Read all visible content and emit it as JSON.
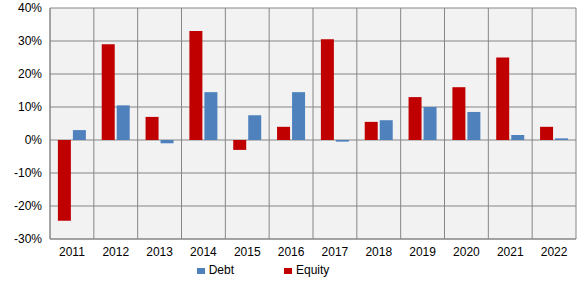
{
  "chart_data": {
    "type": "bar",
    "categories": [
      "2011",
      "2012",
      "2013",
      "2014",
      "2015",
      "2016",
      "2017",
      "2018",
      "2019",
      "2020",
      "2021",
      "2022"
    ],
    "series": [
      {
        "name": "Equity",
        "color": "#c00000",
        "values": [
          -24.5,
          29,
          7,
          33,
          -3,
          4,
          30.5,
          5.5,
          13,
          16,
          25,
          4
        ]
      },
      {
        "name": "Debt",
        "color": "#4f81bd",
        "values": [
          3,
          10.5,
          -1,
          14.5,
          7.5,
          14.5,
          -0.5,
          6,
          10,
          8.5,
          1.5,
          0.5
        ]
      }
    ],
    "ylim": [
      -30,
      40
    ],
    "yticks": [
      {
        "value": -30,
        "label": "-30%"
      },
      {
        "value": -20,
        "label": "-20%"
      },
      {
        "value": -10,
        "label": "-10%"
      },
      {
        "value": 0,
        "label": "0%"
      },
      {
        "value": 10,
        "label": "10%"
      },
      {
        "value": 20,
        "label": "20%"
      },
      {
        "value": 30,
        "label": "30%"
      },
      {
        "value": 40,
        "label": "40%"
      }
    ],
    "grid": true,
    "legend": "bottom"
  }
}
